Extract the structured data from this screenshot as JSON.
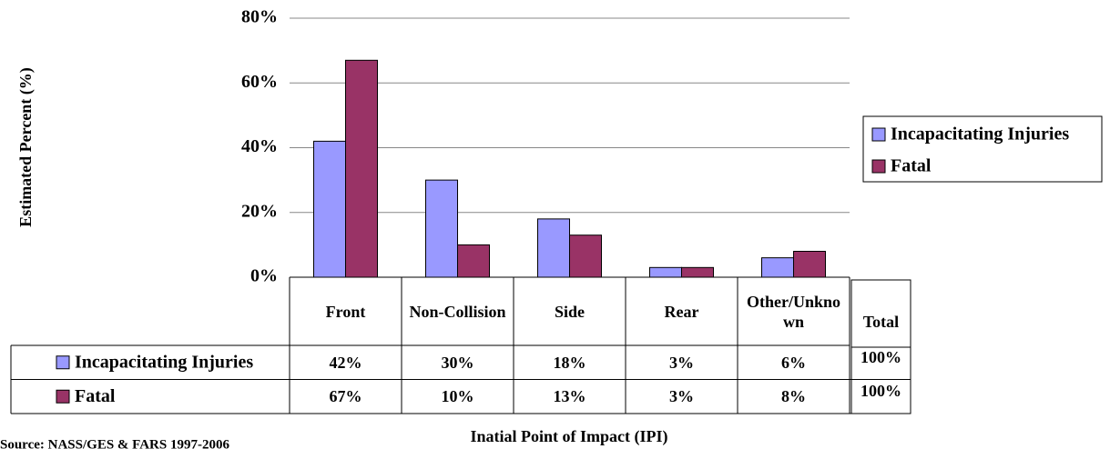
{
  "chart_data": {
    "type": "bar",
    "categories": [
      "Front",
      "Non-Collision",
      "Side",
      "Rear",
      "Other/Unknown"
    ],
    "series": [
      {
        "name": "Incapacitating Injuries",
        "color": "#9999ff",
        "values": [
          42,
          30,
          18,
          3,
          6
        ],
        "value_labels": [
          "42%",
          "30%",
          "18%",
          "3%",
          "6%"
        ]
      },
      {
        "name": "Fatal",
        "color": "#993366",
        "values": [
          67,
          10,
          13,
          3,
          8
        ],
        "value_labels": [
          "67%",
          "10%",
          "13%",
          "3%",
          "8%"
        ]
      }
    ],
    "total_header": "Total",
    "totals": [
      "100%",
      "100%"
    ],
    "ylim": [
      0,
      80
    ],
    "yticks": [
      {
        "value": 0,
        "label": "0%"
      },
      {
        "value": 20,
        "label": "20%"
      },
      {
        "value": 40,
        "label": "40%"
      },
      {
        "value": 60,
        "label": "60%"
      },
      {
        "value": 80,
        "label": "80%"
      }
    ],
    "grid": true,
    "x_label": "Inatial Point of Impact (IPI)",
    "y_label": "Estimated Percent (%)",
    "source": "Source: NASS/GES & FARS 1997-2006",
    "legend": "right"
  }
}
